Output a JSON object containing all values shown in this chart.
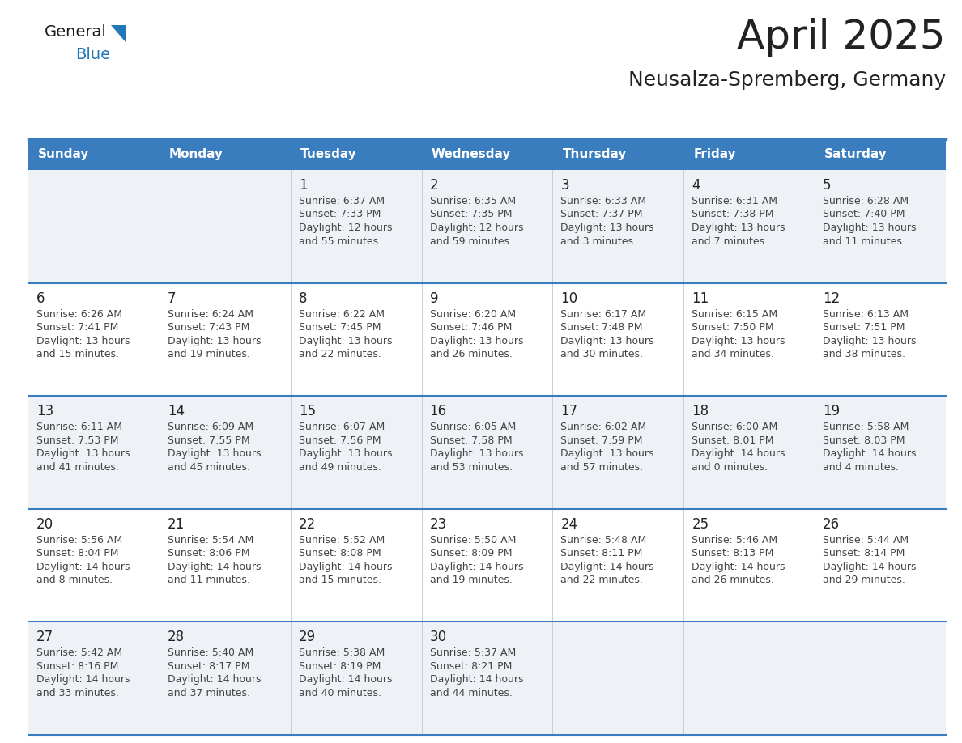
{
  "title": "April 2025",
  "subtitle": "Neusalza-Spremberg, Germany",
  "days_of_week": [
    "Sunday",
    "Monday",
    "Tuesday",
    "Wednesday",
    "Thursday",
    "Friday",
    "Saturday"
  ],
  "header_bg": "#3a7dbf",
  "header_text_color": "#ffffff",
  "row_bg_even": "#eef2f7",
  "row_bg_odd": "#ffffff",
  "divider_color": "#3a7dbf",
  "text_color": "#444444",
  "day_number_color": "#222222",
  "calendar_data": [
    [
      null,
      null,
      {
        "day": "1",
        "sunrise": "6:37 AM",
        "sunset": "7:33 PM",
        "daylight": "12 hours",
        "daylight2": "and 55 minutes."
      },
      {
        "day": "2",
        "sunrise": "6:35 AM",
        "sunset": "7:35 PM",
        "daylight": "12 hours",
        "daylight2": "and 59 minutes."
      },
      {
        "day": "3",
        "sunrise": "6:33 AM",
        "sunset": "7:37 PM",
        "daylight": "13 hours",
        "daylight2": "and 3 minutes."
      },
      {
        "day": "4",
        "sunrise": "6:31 AM",
        "sunset": "7:38 PM",
        "daylight": "13 hours",
        "daylight2": "and 7 minutes."
      },
      {
        "day": "5",
        "sunrise": "6:28 AM",
        "sunset": "7:40 PM",
        "daylight": "13 hours",
        "daylight2": "and 11 minutes."
      }
    ],
    [
      {
        "day": "6",
        "sunrise": "6:26 AM",
        "sunset": "7:41 PM",
        "daylight": "13 hours",
        "daylight2": "and 15 minutes."
      },
      {
        "day": "7",
        "sunrise": "6:24 AM",
        "sunset": "7:43 PM",
        "daylight": "13 hours",
        "daylight2": "and 19 minutes."
      },
      {
        "day": "8",
        "sunrise": "6:22 AM",
        "sunset": "7:45 PM",
        "daylight": "13 hours",
        "daylight2": "and 22 minutes."
      },
      {
        "day": "9",
        "sunrise": "6:20 AM",
        "sunset": "7:46 PM",
        "daylight": "13 hours",
        "daylight2": "and 26 minutes."
      },
      {
        "day": "10",
        "sunrise": "6:17 AM",
        "sunset": "7:48 PM",
        "daylight": "13 hours",
        "daylight2": "and 30 minutes."
      },
      {
        "day": "11",
        "sunrise": "6:15 AM",
        "sunset": "7:50 PM",
        "daylight": "13 hours",
        "daylight2": "and 34 minutes."
      },
      {
        "day": "12",
        "sunrise": "6:13 AM",
        "sunset": "7:51 PM",
        "daylight": "13 hours",
        "daylight2": "and 38 minutes."
      }
    ],
    [
      {
        "day": "13",
        "sunrise": "6:11 AM",
        "sunset": "7:53 PM",
        "daylight": "13 hours",
        "daylight2": "and 41 minutes."
      },
      {
        "day": "14",
        "sunrise": "6:09 AM",
        "sunset": "7:55 PM",
        "daylight": "13 hours",
        "daylight2": "and 45 minutes."
      },
      {
        "day": "15",
        "sunrise": "6:07 AM",
        "sunset": "7:56 PM",
        "daylight": "13 hours",
        "daylight2": "and 49 minutes."
      },
      {
        "day": "16",
        "sunrise": "6:05 AM",
        "sunset": "7:58 PM",
        "daylight": "13 hours",
        "daylight2": "and 53 minutes."
      },
      {
        "day": "17",
        "sunrise": "6:02 AM",
        "sunset": "7:59 PM",
        "daylight": "13 hours",
        "daylight2": "and 57 minutes."
      },
      {
        "day": "18",
        "sunrise": "6:00 AM",
        "sunset": "8:01 PM",
        "daylight": "14 hours",
        "daylight2": "and 0 minutes."
      },
      {
        "day": "19",
        "sunrise": "5:58 AM",
        "sunset": "8:03 PM",
        "daylight": "14 hours",
        "daylight2": "and 4 minutes."
      }
    ],
    [
      {
        "day": "20",
        "sunrise": "5:56 AM",
        "sunset": "8:04 PM",
        "daylight": "14 hours",
        "daylight2": "and 8 minutes."
      },
      {
        "day": "21",
        "sunrise": "5:54 AM",
        "sunset": "8:06 PM",
        "daylight": "14 hours",
        "daylight2": "and 11 minutes."
      },
      {
        "day": "22",
        "sunrise": "5:52 AM",
        "sunset": "8:08 PM",
        "daylight": "14 hours",
        "daylight2": "and 15 minutes."
      },
      {
        "day": "23",
        "sunrise": "5:50 AM",
        "sunset": "8:09 PM",
        "daylight": "14 hours",
        "daylight2": "and 19 minutes."
      },
      {
        "day": "24",
        "sunrise": "5:48 AM",
        "sunset": "8:11 PM",
        "daylight": "14 hours",
        "daylight2": "and 22 minutes."
      },
      {
        "day": "25",
        "sunrise": "5:46 AM",
        "sunset": "8:13 PM",
        "daylight": "14 hours",
        "daylight2": "and 26 minutes."
      },
      {
        "day": "26",
        "sunrise": "5:44 AM",
        "sunset": "8:14 PM",
        "daylight": "14 hours",
        "daylight2": "and 29 minutes."
      }
    ],
    [
      {
        "day": "27",
        "sunrise": "5:42 AM",
        "sunset": "8:16 PM",
        "daylight": "14 hours",
        "daylight2": "and 33 minutes."
      },
      {
        "day": "28",
        "sunrise": "5:40 AM",
        "sunset": "8:17 PM",
        "daylight": "14 hours",
        "daylight2": "and 37 minutes."
      },
      {
        "day": "29",
        "sunrise": "5:38 AM",
        "sunset": "8:19 PM",
        "daylight": "14 hours",
        "daylight2": "and 40 minutes."
      },
      {
        "day": "30",
        "sunrise": "5:37 AM",
        "sunset": "8:21 PM",
        "daylight": "14 hours",
        "daylight2": "and 44 minutes."
      },
      null,
      null,
      null
    ]
  ],
  "logo_general_color": "#1a1a1a",
  "logo_blue_color": "#2177b8",
  "logo_triangle_color": "#2177b8",
  "title_fontsize": 36,
  "subtitle_fontsize": 18,
  "header_fontsize": 11,
  "cell_day_fontsize": 12,
  "cell_info_fontsize": 9
}
